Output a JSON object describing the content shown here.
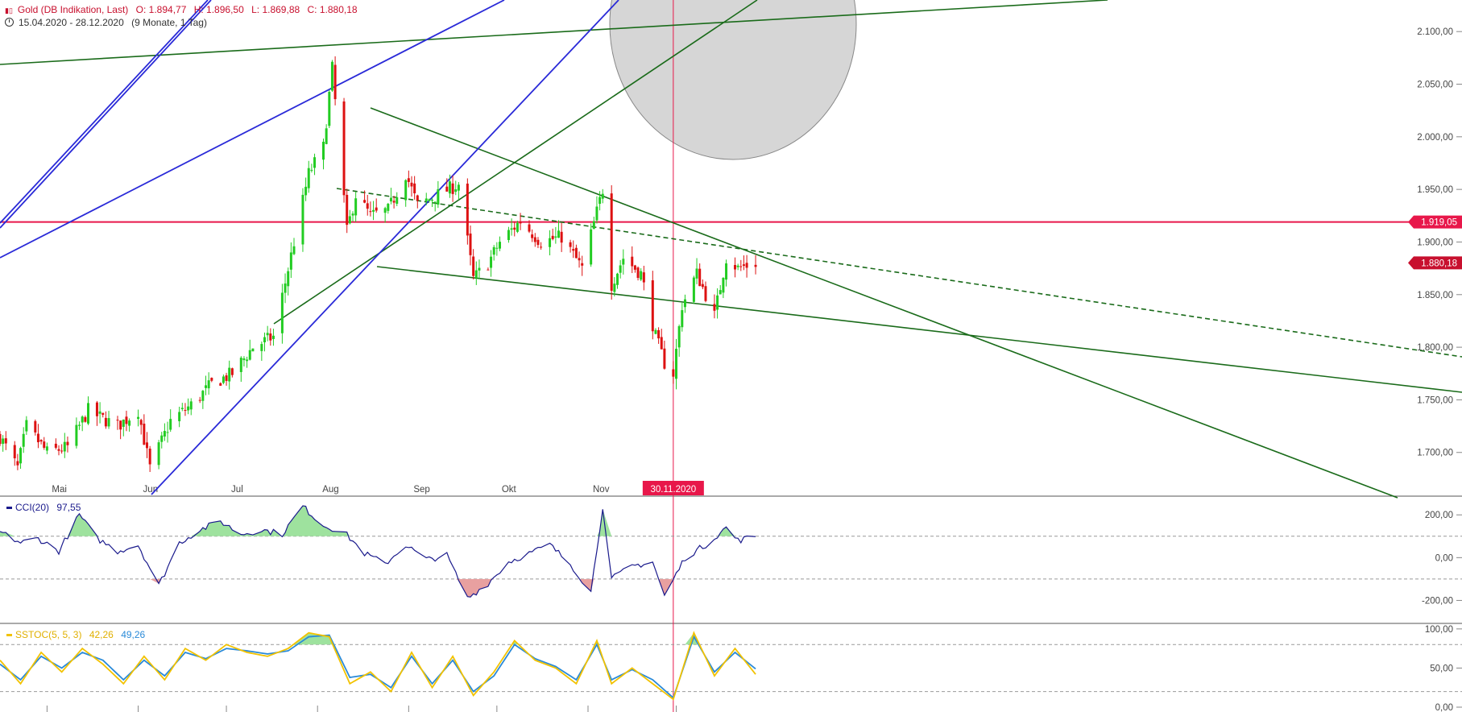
{
  "header": {
    "title": "Gold (DB Indikation, Last)",
    "open": "O: 1.894,77",
    "high": "H: 1.896,50",
    "low": "L: 1.869,88",
    "close": "C: 1.880,18",
    "range": "15.04.2020 - 28.12.2020",
    "period": "(9 Monate, 1 Tag)",
    "icon": "candlestick-icon"
  },
  "indicators": {
    "cci_label": "CCI(20)",
    "cci_value": "97,55",
    "sstoc_label": "SSTOC(5, 5, 3)",
    "sstoc_k": "42,26",
    "sstoc_d": "49,26"
  },
  "colors": {
    "up": "#22cc22",
    "down": "#dd1111",
    "trend_green": "#1a6b1a",
    "trend_blue": "#2a2ad8",
    "price_line": "#e8174a",
    "cci_line": "#1a1a8c",
    "stoch_k": "#f2c200",
    "stoch_d": "#2a8ad8"
  },
  "chart_data": [
    {
      "type": "candlestick",
      "title": "Gold (DB Indikation, Last)",
      "x_months": [
        "Mai",
        "Jun",
        "Jul",
        "Aug",
        "Sep",
        "Okt",
        "Nov"
      ],
      "ylim": [
        1660,
        2130
      ],
      "yticks": [
        "1.700,00",
        "1.750,00",
        "1.800,00",
        "1.850,00",
        "1.900,00",
        "1.950,00",
        "2.000,00",
        "2.050,00",
        "2.100,00"
      ],
      "tags": {
        "horizontal_line": "1.919,05",
        "last_price": "1.880,18",
        "crosshair_date": "30.11.2020"
      },
      "close_anchors": [
        [
          "2020-04-15",
          1715
        ],
        [
          "2020-04-21",
          1685
        ],
        [
          "2020-04-24",
          1725
        ],
        [
          "2020-05-01",
          1700
        ],
        [
          "2020-05-08",
          1705
        ],
        [
          "2020-05-15",
          1740
        ],
        [
          "2020-05-18",
          1735
        ],
        [
          "2020-05-25",
          1725
        ],
        [
          "2020-06-01",
          1740
        ],
        [
          "2020-06-05",
          1685
        ],
        [
          "2020-06-12",
          1730
        ],
        [
          "2020-06-19",
          1745
        ],
        [
          "2020-06-26",
          1765
        ],
        [
          "2020-07-03",
          1775
        ],
        [
          "2020-07-10",
          1800
        ],
        [
          "2020-07-17",
          1810
        ],
        [
          "2020-07-24",
          1900
        ],
        [
          "2020-07-29",
          1965
        ],
        [
          "2020-08-03",
          1990
        ],
        [
          "2020-08-06",
          2065
        ],
        [
          "2020-08-11",
          1910
        ],
        [
          "2020-08-14",
          1945
        ],
        [
          "2020-08-19",
          1925
        ],
        [
          "2020-08-25",
          1930
        ],
        [
          "2020-08-31",
          1965
        ],
        [
          "2020-09-04",
          1935
        ],
        [
          "2020-09-11",
          1945
        ],
        [
          "2020-09-18",
          1955
        ],
        [
          "2020-09-23",
          1865
        ],
        [
          "2020-09-28",
          1880
        ],
        [
          "2020-10-02",
          1900
        ],
        [
          "2020-10-09",
          1920
        ],
        [
          "2020-10-16",
          1900
        ],
        [
          "2020-10-23",
          1905
        ],
        [
          "2020-10-30",
          1875
        ],
        [
          "2020-11-06",
          1950
        ],
        [
          "2020-11-09",
          1860
        ],
        [
          "2020-11-13",
          1885
        ],
        [
          "2020-11-19",
          1870
        ],
        [
          "2020-11-24",
          1810
        ],
        [
          "2020-11-27",
          1785
        ],
        [
          "2020-11-30",
          1775
        ],
        [
          "2020-12-03",
          1840
        ],
        [
          "2020-12-08",
          1870
        ],
        [
          "2020-12-14",
          1830
        ],
        [
          "2020-12-18",
          1885
        ],
        [
          "2020-12-22",
          1875
        ],
        [
          "2020-12-28",
          1880
        ]
      ]
    },
    {
      "type": "line",
      "title": "CCI(20)",
      "ylim": [
        -300,
        280
      ],
      "yticks": [
        "-200,00",
        "0,00",
        "200,00"
      ],
      "reference_lines": [
        100,
        -100
      ],
      "anchors": [
        [
          "2020-04-15",
          120
        ],
        [
          "2020-04-22",
          70
        ],
        [
          "2020-04-28",
          90
        ],
        [
          "2020-05-05",
          30
        ],
        [
          "2020-05-12",
          200
        ],
        [
          "2020-05-18",
          90
        ],
        [
          "2020-05-25",
          30
        ],
        [
          "2020-06-01",
          60
        ],
        [
          "2020-06-08",
          -130
        ],
        [
          "2020-06-15",
          70
        ],
        [
          "2020-06-22",
          130
        ],
        [
          "2020-06-29",
          170
        ],
        [
          "2020-07-06",
          110
        ],
        [
          "2020-07-13",
          130
        ],
        [
          "2020-07-20",
          110
        ],
        [
          "2020-07-27",
          240
        ],
        [
          "2020-08-03",
          150
        ],
        [
          "2020-08-10",
          120
        ],
        [
          "2020-08-17",
          20
        ],
        [
          "2020-08-24",
          -30
        ],
        [
          "2020-08-31",
          60
        ],
        [
          "2020-09-07",
          -10
        ],
        [
          "2020-09-14",
          10
        ],
        [
          "2020-09-21",
          -190
        ],
        [
          "2020-09-28",
          -120
        ],
        [
          "2020-10-05",
          -20
        ],
        [
          "2020-10-12",
          20
        ],
        [
          "2020-10-19",
          60
        ],
        [
          "2020-10-26",
          -30
        ],
        [
          "2020-11-02",
          -160
        ],
        [
          "2020-11-06",
          240
        ],
        [
          "2020-11-09",
          -100
        ],
        [
          "2020-11-16",
          -40
        ],
        [
          "2020-11-23",
          -20
        ],
        [
          "2020-11-27",
          -180
        ],
        [
          "2020-12-04",
          0
        ],
        [
          "2020-12-11",
          60
        ],
        [
          "2020-12-18",
          140
        ],
        [
          "2020-12-22",
          80
        ],
        [
          "2020-12-28",
          100
        ]
      ]
    },
    {
      "type": "line",
      "title": "SSTOC(5, 5, 3)",
      "ylim": [
        0,
        105
      ],
      "yticks": [
        "0,00",
        "50,00",
        "100,00"
      ],
      "reference_lines": [
        80,
        20
      ],
      "series": [
        {
          "name": "42,26",
          "anchors": [
            [
              "2020-04-15",
              60
            ],
            [
              "2020-04-22",
              30
            ],
            [
              "2020-04-29",
              70
            ],
            [
              "2020-05-06",
              45
            ],
            [
              "2020-05-13",
              75
            ],
            [
              "2020-05-20",
              55
            ],
            [
              "2020-05-27",
              30
            ],
            [
              "2020-06-03",
              65
            ],
            [
              "2020-06-10",
              35
            ],
            [
              "2020-06-17",
              75
            ],
            [
              "2020-06-24",
              60
            ],
            [
              "2020-07-01",
              80
            ],
            [
              "2020-07-08",
              70
            ],
            [
              "2020-07-15",
              65
            ],
            [
              "2020-07-22",
              75
            ],
            [
              "2020-07-29",
              95
            ],
            [
              "2020-08-05",
              90
            ],
            [
              "2020-08-12",
              30
            ],
            [
              "2020-08-19",
              45
            ],
            [
              "2020-08-26",
              20
            ],
            [
              "2020-09-02",
              70
            ],
            [
              "2020-09-09",
              25
            ],
            [
              "2020-09-16",
              65
            ],
            [
              "2020-09-23",
              15
            ],
            [
              "2020-09-30",
              45
            ],
            [
              "2020-10-07",
              85
            ],
            [
              "2020-10-14",
              60
            ],
            [
              "2020-10-21",
              50
            ],
            [
              "2020-10-28",
              30
            ],
            [
              "2020-11-04",
              85
            ],
            [
              "2020-11-09",
              30
            ],
            [
              "2020-11-16",
              50
            ],
            [
              "2020-11-23",
              30
            ],
            [
              "2020-11-30",
              10
            ],
            [
              "2020-12-07",
              95
            ],
            [
              "2020-12-14",
              40
            ],
            [
              "2020-12-21",
              75
            ],
            [
              "2020-12-28",
              42
            ]
          ]
        },
        {
          "name": "49,26",
          "anchors": [
            [
              "2020-04-15",
              55
            ],
            [
              "2020-04-22",
              35
            ],
            [
              "2020-04-29",
              65
            ],
            [
              "2020-05-06",
              50
            ],
            [
              "2020-05-13",
              70
            ],
            [
              "2020-05-20",
              60
            ],
            [
              "2020-05-27",
              35
            ],
            [
              "2020-06-03",
              60
            ],
            [
              "2020-06-10",
              40
            ],
            [
              "2020-06-17",
              70
            ],
            [
              "2020-06-24",
              62
            ],
            [
              "2020-07-01",
              75
            ],
            [
              "2020-07-08",
              72
            ],
            [
              "2020-07-15",
              68
            ],
            [
              "2020-07-22",
              72
            ],
            [
              "2020-07-29",
              90
            ],
            [
              "2020-08-05",
              92
            ],
            [
              "2020-08-12",
              38
            ],
            [
              "2020-08-19",
              42
            ],
            [
              "2020-08-26",
              25
            ],
            [
              "2020-09-02",
              65
            ],
            [
              "2020-09-09",
              30
            ],
            [
              "2020-09-16",
              60
            ],
            [
              "2020-09-23",
              20
            ],
            [
              "2020-09-30",
              40
            ],
            [
              "2020-10-07",
              80
            ],
            [
              "2020-10-14",
              62
            ],
            [
              "2020-10-21",
              52
            ],
            [
              "2020-10-28",
              35
            ],
            [
              "2020-11-04",
              80
            ],
            [
              "2020-11-09",
              35
            ],
            [
              "2020-11-16",
              48
            ],
            [
              "2020-11-23",
              35
            ],
            [
              "2020-11-30",
              12
            ],
            [
              "2020-12-07",
              90
            ],
            [
              "2020-12-14",
              45
            ],
            [
              "2020-12-21",
              70
            ],
            [
              "2020-12-28",
              49
            ]
          ]
        }
      ]
    }
  ]
}
